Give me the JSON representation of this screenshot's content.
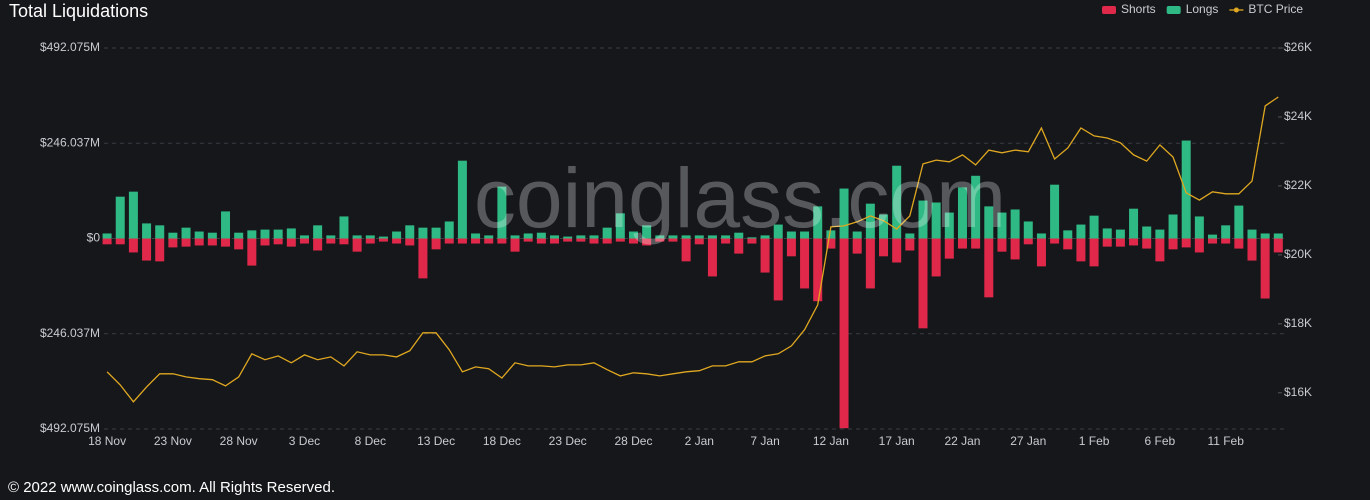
{
  "chart_data": {
    "type": "bar",
    "title": "Total Liquidations",
    "watermark": "coinglass.com",
    "legend": "top-right",
    "grid": true,
    "categories": [
      "18 Nov",
      null,
      null,
      null,
      null,
      "23 Nov",
      null,
      null,
      null,
      null,
      "28 Nov",
      null,
      null,
      null,
      null,
      "3 Dec",
      null,
      null,
      null,
      null,
      "8 Dec",
      null,
      null,
      null,
      null,
      "13 Dec",
      null,
      null,
      null,
      null,
      "18 Dec",
      null,
      null,
      null,
      null,
      "23 Dec",
      null,
      null,
      null,
      null,
      "28 Dec",
      null,
      null,
      null,
      null,
      "2 Jan",
      null,
      null,
      null,
      null,
      "7 Jan",
      null,
      null,
      null,
      null,
      "12 Jan",
      null,
      null,
      null,
      null,
      "17 Jan",
      null,
      null,
      null,
      null,
      "22 Jan",
      null,
      null,
      null,
      null,
      "27 Jan",
      null,
      null,
      null,
      null,
      "1 Feb",
      null,
      null,
      null,
      null,
      "6 Feb",
      null,
      null,
      null,
      null,
      "11 Feb",
      null,
      null,
      null,
      null
    ],
    "series": [
      {
        "name": "Shorts",
        "color": "#e0294a",
        "values": [
          -15,
          -15,
          -36,
          -57,
          -59,
          -23,
          -21,
          -18,
          -18,
          -21,
          -28,
          -70,
          -18,
          -15,
          -21,
          -13,
          -31,
          -13,
          -15,
          -34,
          -13,
          -8,
          -13,
          -18,
          -103,
          -28,
          -13,
          -13,
          -13,
          -13,
          -13,
          -34,
          -8,
          -13,
          -13,
          -8,
          -8,
          -13,
          -13,
          -8,
          -13,
          -18,
          -8,
          -8,
          -59,
          -15,
          -98,
          -13,
          -39,
          -13,
          -88,
          -160,
          -46,
          -129,
          -162,
          -26,
          -490,
          -39,
          -129,
          -46,
          -62,
          -31,
          -232,
          -98,
          -52,
          -26,
          -26,
          -152,
          -34,
          -54,
          -15,
          -72,
          -13,
          -28,
          -59,
          -72,
          -21,
          -21,
          -18,
          -26,
          -59,
          -28,
          -23,
          -36,
          -13,
          -13,
          -26,
          -57,
          -155,
          -36
        ]
      },
      {
        "name": "Longs",
        "color": "#2fb984",
        "values": [
          13,
          108,
          121,
          39,
          34,
          15,
          28,
          18,
          15,
          70,
          15,
          21,
          23,
          23,
          26,
          8,
          34,
          8,
          57,
          8,
          8,
          5,
          18,
          34,
          28,
          28,
          44,
          201,
          13,
          8,
          134,
          8,
          13,
          15,
          8,
          5,
          8,
          8,
          28,
          65,
          18,
          34,
          8,
          8,
          8,
          8,
          8,
          8,
          15,
          3,
          8,
          36,
          18,
          18,
          83,
          21,
          129,
          18,
          90,
          62,
          188,
          13,
          98,
          93,
          67,
          132,
          162,
          83,
          67,
          75,
          44,
          13,
          139,
          21,
          36,
          59,
          26,
          23,
          77,
          31,
          23,
          62,
          253,
          57,
          10,
          34,
          85,
          23,
          13,
          13
        ]
      },
      {
        "name": "BTC Price",
        "type": "line",
        "axis": "y2",
        "color": "#e0a820",
        "values": [
          16610,
          16230,
          15740,
          16170,
          16550,
          16550,
          16460,
          16410,
          16380,
          16200,
          16460,
          17130,
          16960,
          17070,
          16870,
          17100,
          16960,
          17040,
          16780,
          17190,
          17100,
          17100,
          17040,
          17220,
          17740,
          17740,
          17250,
          16610,
          16750,
          16700,
          16430,
          16870,
          16780,
          16780,
          16750,
          16810,
          16810,
          16870,
          16670,
          16490,
          16580,
          16550,
          16490,
          16550,
          16610,
          16640,
          16780,
          16780,
          16900,
          16900,
          17070,
          17130,
          17360,
          17830,
          18550,
          20810,
          20840,
          20960,
          21130,
          20990,
          20750,
          21130,
          22640,
          22750,
          22700,
          22900,
          22610,
          23040,
          22960,
          23040,
          22990,
          23680,
          22780,
          23100,
          23680,
          23450,
          23390,
          23250,
          22900,
          22720,
          23190,
          22840,
          21800,
          21590,
          21830,
          21770,
          21770,
          22140,
          24320,
          24580
        ]
      }
    ],
    "ylim": [
      -492.075,
      492.075
    ],
    "yticks": [
      {
        "value": 492.075,
        "label": "$492.075M"
      },
      {
        "value": 246.037,
        "label": "$246.037M"
      },
      {
        "value": 0,
        "label": "$0"
      },
      {
        "value": -246.037,
        "label": "$246.037M"
      },
      {
        "value": -492.075,
        "label": "$492.075M"
      }
    ],
    "y2lim": [
      14950,
      26000
    ],
    "y2ticks": [
      {
        "value": 26000,
        "label": "$26K"
      },
      {
        "value": 24000,
        "label": "$24K"
      },
      {
        "value": 22000,
        "label": "$22K"
      },
      {
        "value": 20000,
        "label": "$20K"
      },
      {
        "value": 18000,
        "label": "$18K"
      },
      {
        "value": 16000,
        "label": "$16K"
      }
    ]
  },
  "footer": "© 2022 www.coinglass.com. All Rights Reserved."
}
